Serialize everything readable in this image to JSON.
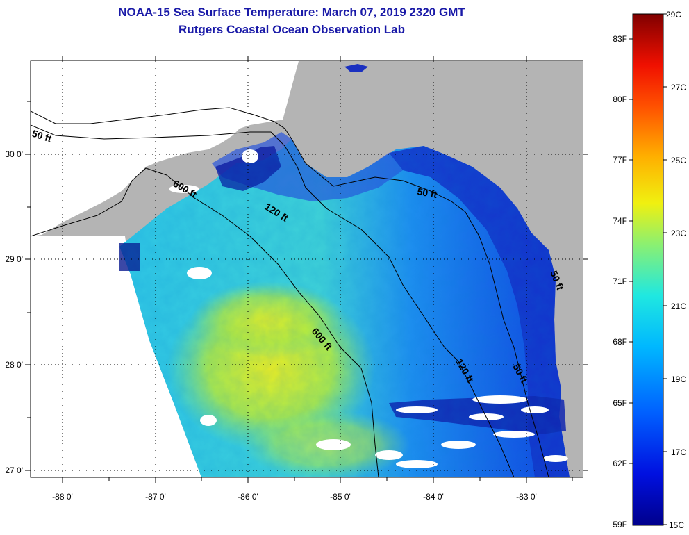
{
  "title": {
    "line1": "NOAA-15 Sea Surface Temperature:  March 07, 2019 2320 GMT",
    "line2": "Rutgers Coastal Ocean Observation Lab"
  },
  "map": {
    "lon_ticks": [
      "-88 0'",
      "-87 0'",
      "-86 0'",
      "-85 0'",
      "-84 0'",
      "-83 0'"
    ],
    "lat_ticks": [
      "30 0'",
      "29 0'",
      "28 0'",
      "27 0'"
    ],
    "contour_labels": {
      "a": "50 ft",
      "b": "600 ft",
      "c": "120 ft",
      "d": "50 ft",
      "e": "600 ft",
      "f": "120 ft",
      "g": "50 ft",
      "h": "50 ft"
    },
    "colors": {
      "land": "#b4b4b4",
      "no_data": "#ffffff",
      "coast_line": "#000000"
    }
  },
  "colorbar": {
    "fahrenheit": [
      "83F",
      "80F",
      "77F",
      "74F",
      "71F",
      "68F",
      "65F",
      "62F",
      "59F"
    ],
    "celsius": [
      "29C",
      "27C",
      "25C",
      "23C",
      "21C",
      "19C",
      "17C",
      "15C"
    ]
  }
}
